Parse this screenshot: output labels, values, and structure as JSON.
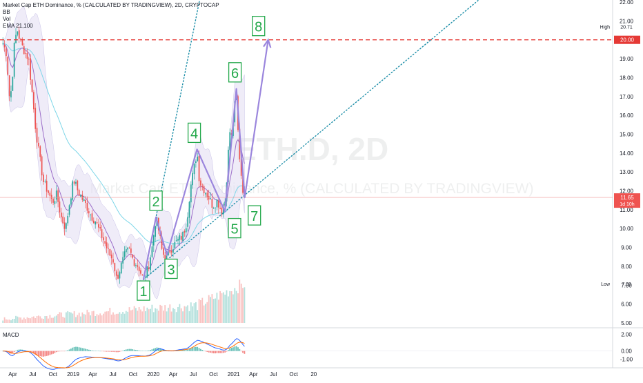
{
  "legend": {
    "title": "Market Cap ETH Dominance, % (CALCULATED BY TRADINGVIEW), 2D, CRYPTOCAP",
    "bb": "BB",
    "vol": "Vol",
    "ema": "EMA 21,100"
  },
  "watermark": {
    "symbol": "ETH.D, 2D",
    "description": "Market Cap ETH Dominance, % (CALCULATED BY TRADINGVIEW)"
  },
  "macd_label": "MACD",
  "price_axis": {
    "ticks": [
      "22.00",
      "21.00",
      "20.00",
      "19.00",
      "18.00",
      "17.00",
      "16.00",
      "15.00",
      "14.00",
      "13.00",
      "12.00",
      "11.00",
      "10.00",
      "9.00",
      "8.00",
      "7.00",
      "6.00",
      "5.00"
    ],
    "high_label": "High",
    "high_value": "20.71",
    "level_value": "20.00",
    "current_value": "11.65",
    "countdown": "1d 10h",
    "low_label": "Low",
    "low_value": "7.09"
  },
  "macd_axis": {
    "ticks": [
      "2.00",
      "0.00",
      "-1.00"
    ]
  },
  "time_axis": {
    "ticks": [
      "Apr",
      "Jul",
      "Oct",
      "2019",
      "Apr",
      "Jul",
      "Oct",
      "2020",
      "Apr",
      "Jul",
      "Oct",
      "2021",
      "Apr",
      "Jul",
      "Oct",
      "20"
    ]
  },
  "wave_labels": [
    "1",
    "2",
    "3",
    "4",
    "5",
    "6",
    "7",
    "8"
  ],
  "colors": {
    "up": "#26a69a",
    "down": "#ef5350",
    "bb_fill": "#e1dcf2",
    "ema_fast": "#9c6ec9",
    "ema_slow": "#7dd6e8",
    "wave": "#9b86dd",
    "channel": "#1c8ea8",
    "label": "#22a84a",
    "level": "#e53935",
    "macd_line": "#2962ff",
    "signal_line": "#ff6d00"
  },
  "chart_data": [
    {
      "type": "candlestick",
      "title": "Market Cap ETH Dominance, % (CALCULATED BY TRADINGVIEW), 2D, CRYPTOCAP",
      "ylim": [
        5,
        22
      ],
      "x_ticks": [
        "Apr",
        "Jul",
        "Oct",
        "2019",
        "Apr",
        "Jul",
        "Oct",
        "2020",
        "Apr",
        "Jul",
        "Oct",
        "2021",
        "Apr",
        "Jul",
        "Oct",
        "20"
      ],
      "price_path": [
        [
          "2018-03-25",
          19.8
        ],
        [
          "2018-04-10",
          19.3
        ],
        [
          "2018-04-25",
          16.8
        ],
        [
          "2018-05-05",
          17.6
        ],
        [
          "2018-05-15",
          19.6
        ],
        [
          "2018-05-28",
          20.6
        ],
        [
          "2018-06-15",
          19.8
        ],
        [
          "2018-07-05",
          19.3
        ],
        [
          "2018-07-20",
          19.0
        ],
        [
          "2018-08-05",
          17.2
        ],
        [
          "2018-08-20",
          15.4
        ],
        [
          "2018-09-05",
          14.0
        ],
        [
          "2018-09-25",
          12.5
        ],
        [
          "2018-10-15",
          12.0
        ],
        [
          "2018-11-05",
          11.4
        ],
        [
          "2018-11-25",
          11.8
        ],
        [
          "2018-12-15",
          10.6
        ],
        [
          "2019-01-05",
          10.0
        ],
        [
          "2019-01-20",
          11.2
        ],
        [
          "2019-02-10",
          12.6
        ],
        [
          "2019-03-01",
          12.0
        ],
        [
          "2019-03-20",
          11.6
        ],
        [
          "2019-04-10",
          11.2
        ],
        [
          "2019-04-30",
          10.7
        ],
        [
          "2019-05-20",
          10.4
        ],
        [
          "2019-06-10",
          9.8
        ],
        [
          "2019-06-30",
          9.3
        ],
        [
          "2019-07-20",
          8.7
        ],
        [
          "2019-08-10",
          8.3
        ],
        [
          "2019-08-25",
          7.3
        ],
        [
          "2019-09-10",
          7.9
        ],
        [
          "2019-10-01",
          8.6
        ],
        [
          "2019-10-20",
          8.9
        ],
        [
          "2019-11-10",
          8.3
        ],
        [
          "2019-12-01",
          8.0
        ],
        [
          "2019-12-25",
          7.3
        ],
        [
          "2020-01-15",
          7.9
        ],
        [
          "2020-02-01",
          8.9
        ],
        [
          "2020-02-20",
          10.6
        ],
        [
          "2020-03-05",
          9.8
        ],
        [
          "2020-03-20",
          8.7
        ],
        [
          "2020-04-10",
          8.4
        ],
        [
          "2020-04-25",
          8.9
        ],
        [
          "2020-05-10",
          9.1
        ],
        [
          "2020-06-01",
          9.4
        ],
        [
          "2020-06-20",
          9.6
        ],
        [
          "2020-07-10",
          10.4
        ],
        [
          "2020-07-25",
          12.1
        ],
        [
          "2020-08-10",
          13.1
        ],
        [
          "2020-08-25",
          14.1
        ],
        [
          "2020-09-05",
          12.5
        ],
        [
          "2020-09-25",
          12.1
        ],
        [
          "2020-10-15",
          11.7
        ],
        [
          "2020-11-05",
          11.2
        ],
        [
          "2020-11-25",
          11.5
        ],
        [
          "2020-12-15",
          10.9
        ],
        [
          "2020-12-30",
          11.4
        ],
        [
          "2021-01-10",
          13.2
        ],
        [
          "2021-01-20",
          15.2
        ],
        [
          "2021-01-30",
          14.8
        ],
        [
          "2021-02-10",
          16.4
        ],
        [
          "2021-02-20",
          16.9
        ],
        [
          "2021-03-01",
          14.8
        ],
        [
          "2021-03-08",
          13.6
        ],
        [
          "2021-03-20",
          12.2
        ],
        [
          "2021-03-30",
          11.65
        ]
      ],
      "macd": {
        "ylim": [
          -1.6,
          2.2
        ]
      },
      "horizontal_level": 20.0,
      "high": 20.71,
      "low": 7.09,
      "last": 11.65,
      "elliott_waves": [
        {
          "label": "1",
          "date": "2019-12-25",
          "value": 7.3
        },
        {
          "label": "2",
          "date": "2020-02-20",
          "value": 10.6
        },
        {
          "label": "3",
          "date": "2020-04-10",
          "value": 8.6
        },
        {
          "label": "4",
          "date": "2020-08-25",
          "value": 14.2
        },
        {
          "label": "5",
          "date": "2020-12-30",
          "value": 10.9
        },
        {
          "label": "6",
          "date": "2021-02-20",
          "value": 17.4
        },
        {
          "label": "7",
          "date": "2021-03-30",
          "value": 11.65
        },
        {
          "label": "8",
          "date": "2021-07-15",
          "value": 20.0
        }
      ]
    }
  ]
}
